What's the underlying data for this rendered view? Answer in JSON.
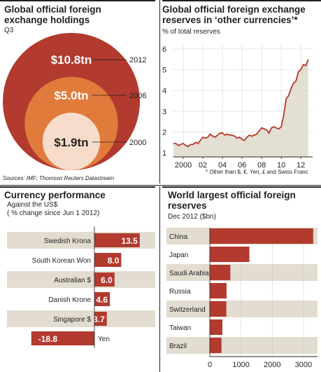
{
  "panels": {
    "holdings": {
      "title": "Global official foreign exchange holdings",
      "subtitle": "Q3",
      "source": "Sources: IMF; Thomson Reuters Datastream"
    },
    "currencies": {
      "title": "Global official foreign exchange reserves in ‘other currencies’*",
      "subtitle": "% of total reserves",
      "footnote": "* Other than $, €, Yen, £ and Swiss Franc"
    },
    "performance": {
      "title": "Currency performance",
      "subtitle1": "Against the US$",
      "subtitle2": "( % change since Jun 1 2012)"
    },
    "largest": {
      "title": "World largest official foreign reserves",
      "subtitle": "Dec 2012 ($bn)"
    }
  },
  "colors": {
    "dark_red": "#b23a2e",
    "orange": "#e07b3c",
    "light": "#f7dccb",
    "beige": "#e2ddd0",
    "area": "#e3dfd3"
  },
  "chart_data": [
    {
      "type": "bubble",
      "title": "Global official foreign exchange holdings",
      "subtitle": "Q3",
      "unit": "$tn",
      "items": [
        {
          "year": "2012",
          "label": "$10.8tn",
          "value": 10.8
        },
        {
          "year": "2006",
          "label": "$5.0tn",
          "value": 5.0
        },
        {
          "year": "2000",
          "label": "$1.9tn",
          "value": 1.9
        }
      ]
    },
    {
      "type": "area",
      "title": "Global official foreign exchange reserves in ‘other currencies’*",
      "ylabel": "% of total reserves",
      "xticks": [
        "2000",
        "02",
        "04",
        "06",
        "08",
        "10",
        "12"
      ],
      "xtick_values": [
        2000,
        2002,
        2004,
        2006,
        2008,
        2010,
        2012
      ],
      "yticks": [
        1,
        2,
        3,
        4,
        5,
        6
      ],
      "xlim": [
        1999.0,
        2013.2
      ],
      "ylim": [
        0.8,
        6.2
      ],
      "grid": true,
      "series": [
        {
          "x": [
            1999.0,
            1999.25,
            1999.5,
            1999.75,
            2000.0,
            2000.25,
            2000.5,
            2000.75,
            2001.0,
            2001.25,
            2001.5,
            2001.75,
            2002.0,
            2002.25,
            2002.5,
            2002.75,
            2003.0,
            2003.25,
            2003.5,
            2003.75,
            2004.0,
            2004.25,
            2004.5,
            2004.75,
            2005.0,
            2005.25,
            2005.5,
            2005.75,
            2006.0,
            2006.25,
            2006.5,
            2006.75,
            2007.0,
            2007.25,
            2007.5,
            2007.75,
            2008.0,
            2008.25,
            2008.5,
            2008.75,
            2009.0,
            2009.25,
            2009.5,
            2009.75,
            2010.0,
            2010.25,
            2010.5,
            2010.75,
            2011.0,
            2011.25,
            2011.5,
            2011.75,
            2012.0,
            2012.25,
            2012.5,
            2012.75
          ],
          "values": [
            1.45,
            1.45,
            1.35,
            1.4,
            1.45,
            1.35,
            1.3,
            1.4,
            1.4,
            1.5,
            1.45,
            1.6,
            1.75,
            1.7,
            1.75,
            1.9,
            1.8,
            1.75,
            1.85,
            1.95,
            1.95,
            1.85,
            1.9,
            1.85,
            1.85,
            1.8,
            1.7,
            1.75,
            1.65,
            1.6,
            1.75,
            1.85,
            1.8,
            1.85,
            1.9,
            2.05,
            2.2,
            2.15,
            2.1,
            1.95,
            2.2,
            2.25,
            2.2,
            2.15,
            2.25,
            2.8,
            3.6,
            3.75,
            4.1,
            4.35,
            4.45,
            4.9,
            5.0,
            5.25,
            5.2,
            5.5
          ]
        }
      ]
    },
    {
      "type": "bar",
      "orientation": "horizontal",
      "title": "Currency performance",
      "subtitle": "Against the US$ ( % change since Jun 1 2012)",
      "categories": [
        "Swedish Krona",
        "South Korean Won",
        "Australian $",
        "Danish Krone",
        "Singapore $",
        "Yen"
      ],
      "values": [
        13.5,
        8.0,
        6.0,
        4.6,
        3.7,
        -18.8
      ],
      "value_labels": [
        "13.5",
        "8.0",
        "6.0",
        "4.6",
        "3.7",
        "-18.8"
      ],
      "xlim": [
        -19.5,
        15.5
      ]
    },
    {
      "type": "bar",
      "orientation": "horizontal",
      "title": "World largest official foreign reserves",
      "subtitle": "Dec 2012 ($bn)",
      "categories": [
        "China",
        "Japan",
        "Saudi Arabia",
        "Russia",
        "Switzerland",
        "Taiwan",
        "Brazil"
      ],
      "values": [
        3312,
        1268,
        657,
        537,
        530,
        403,
        374
      ],
      "xticks": [
        0,
        1000,
        2000,
        3000
      ],
      "xlim": [
        0,
        3450
      ],
      "grid": true
    }
  ]
}
